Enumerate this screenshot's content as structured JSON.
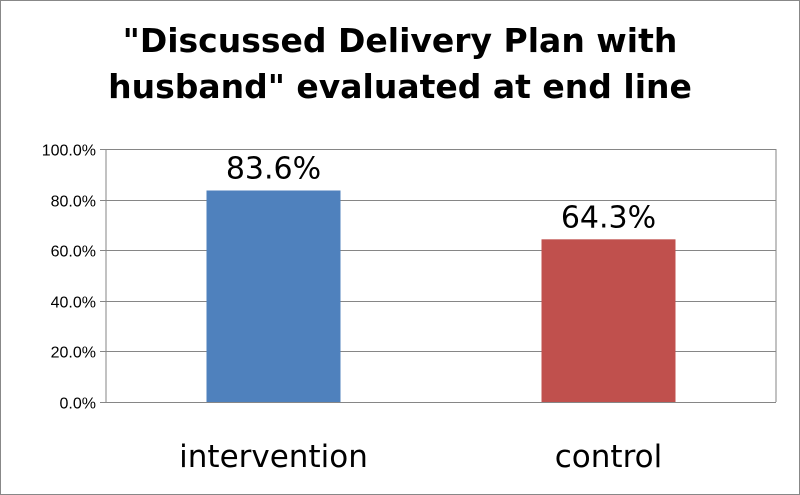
{
  "chart_data": {
    "type": "bar",
    "title_lines": [
      "\"Discussed Delivery Plan with",
      "husband\" evaluated at end line"
    ],
    "categories": [
      "intervention",
      "control"
    ],
    "values": [
      83.6,
      64.3
    ],
    "data_labels": [
      "83.6%",
      "64.3%"
    ],
    "colors": [
      "#4F81BD",
      "#C0504D"
    ],
    "ylim": [
      0,
      100
    ],
    "yticks": [
      0,
      20,
      40,
      60,
      80,
      100
    ],
    "ytick_labels": [
      "0.0%",
      "20.0%",
      "40.0%",
      "60.0%",
      "80.0%",
      "100.0%"
    ],
    "grid": true,
    "legend": "none",
    "xlabel": "",
    "ylabel": ""
  }
}
